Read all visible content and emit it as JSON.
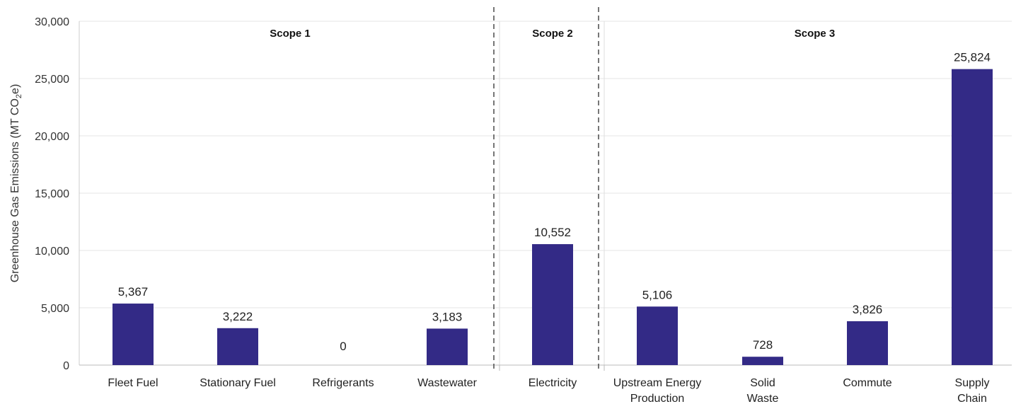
{
  "chart_data": {
    "type": "bar",
    "categories": [
      "Fleet Fuel",
      "Stationary Fuel",
      "Refrigerants",
      "Wastewater",
      "Electricity",
      "Upstream Energy Production",
      "Solid Waste",
      "Commute",
      "Supply Chain"
    ],
    "category_lines": [
      [
        "Fleet Fuel"
      ],
      [
        "Stationary Fuel"
      ],
      [
        "Refrigerants"
      ],
      [
        "Wastewater"
      ],
      [
        "Electricity"
      ],
      [
        "Upstream Energy",
        "Production"
      ],
      [
        "Solid",
        "Waste"
      ],
      [
        "Commute"
      ],
      [
        "Supply",
        "Chain"
      ]
    ],
    "values": [
      5367,
      3222,
      0,
      3183,
      10552,
      5106,
      728,
      3826,
      25824
    ],
    "data_labels": [
      "5,367",
      "3,222",
      "0",
      "3,183",
      "10,552",
      "5,106",
      "728",
      "3,826",
      "25,824"
    ],
    "ylabel": "Greenhouse Gas Emissions (MT CO₂e)",
    "ylim": [
      0,
      30000
    ],
    "yticks": [
      0,
      5000,
      10000,
      15000,
      20000,
      25000,
      30000
    ],
    "ytick_labels": [
      "0",
      "5,000",
      "10,000",
      "15,000",
      "20,000",
      "25,000",
      "30,000"
    ],
    "groups": [
      {
        "label": "Scope 1",
        "start": 0,
        "end": 3
      },
      {
        "label": "Scope 2",
        "start": 4,
        "end": 4
      },
      {
        "label": "Scope 3",
        "start": 5,
        "end": 8
      }
    ],
    "grid": true,
    "bar_color": "#332a86",
    "grid_color": "#e6e6e6"
  }
}
